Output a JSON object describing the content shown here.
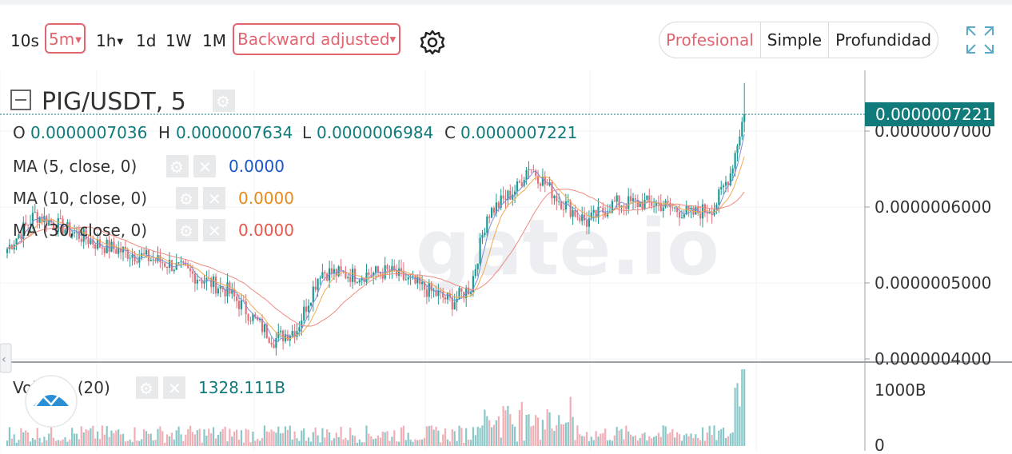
{
  "toolbar": {
    "intervals": [
      "10s",
      "5m",
      "1h",
      "1d",
      "1W",
      "1M"
    ],
    "active_interval": "5m",
    "adjust_label": "Backward adjusted",
    "views": [
      "Profesional",
      "Simple",
      "Profundidad"
    ],
    "active_view": "Profesional"
  },
  "watermark": "gate.io",
  "colors": {
    "up": "#1e9a94",
    "down": "#e0707a",
    "vol_up": "#8ac7c9",
    "vol_down": "#f0aeb5",
    "ma5": "#7b8fd8",
    "ma10": "#f2a94e",
    "ma30": "#ef8a80",
    "accent": "#e2646f",
    "price_tag": "#117a7a"
  },
  "legend": {
    "symbol": "PIG/USDT, 5",
    "o_label": "O",
    "o_value": "0.0000007036",
    "h_label": "H",
    "h_value": "0.0000007634",
    "l_label": "L",
    "l_value": "0.0000006984",
    "c_label": "C",
    "c_value": "0.0000007221",
    "ma5_label": "MA (5, close, 0)",
    "ma5_value": "0.0000",
    "ma10_label": "MA (10, close, 0)",
    "ma10_value": "0.0000",
    "ma30_label": "MA (30, close, 0)",
    "ma30_value": "0.0000"
  },
  "volume": {
    "label": "Volume (20)",
    "value": "1328.111B",
    "axis_ticks": [
      "1000B",
      "0"
    ]
  },
  "price_axis": {
    "ticks": [
      "0.0000007000",
      "0.0000006000",
      "0.0000005000",
      "0.0000004000"
    ],
    "last_price": "0.0000007221"
  },
  "chart_data": {
    "type": "candlestick",
    "symbol": "PIG/USDT",
    "interval": "5",
    "ylim": [
      4e-07,
      7.6e-07
    ],
    "price_ticks": [
      7e-07,
      6e-07,
      5e-07,
      4e-07
    ],
    "last_close": 7.221e-07,
    "approx_close_path": [
      {
        "bar": 0,
        "close": 5.45e-07
      },
      {
        "bar": 12,
        "close": 5.9e-07
      },
      {
        "bar": 40,
        "close": 5.5e-07
      },
      {
        "bar": 70,
        "close": 5.25e-07
      },
      {
        "bar": 95,
        "close": 4.9e-07
      },
      {
        "bar": 115,
        "close": 4.25e-07
      },
      {
        "bar": 125,
        "close": 4.4e-07
      },
      {
        "bar": 135,
        "close": 5.15e-07
      },
      {
        "bar": 150,
        "close": 5.1e-07
      },
      {
        "bar": 165,
        "close": 5.15e-07
      },
      {
        "bar": 180,
        "close": 4.925e-07
      },
      {
        "bar": 192,
        "close": 4.75e-07
      },
      {
        "bar": 200,
        "close": 4.95e-07
      },
      {
        "bar": 207,
        "close": 5.9e-07
      },
      {
        "bar": 220,
        "close": 6.25e-07
      },
      {
        "bar": 225,
        "close": 6.55e-07
      },
      {
        "bar": 238,
        "close": 6.1e-07
      },
      {
        "bar": 250,
        "close": 5.8e-07
      },
      {
        "bar": 262,
        "close": 6.05e-07
      },
      {
        "bar": 280,
        "close": 6.05e-07
      },
      {
        "bar": 295,
        "close": 5.9e-07
      },
      {
        "bar": 305,
        "close": 6e-07
      },
      {
        "bar": 312,
        "close": 6.45e-07
      },
      {
        "bar": 318,
        "close": 7.25e-07
      }
    ]
  }
}
